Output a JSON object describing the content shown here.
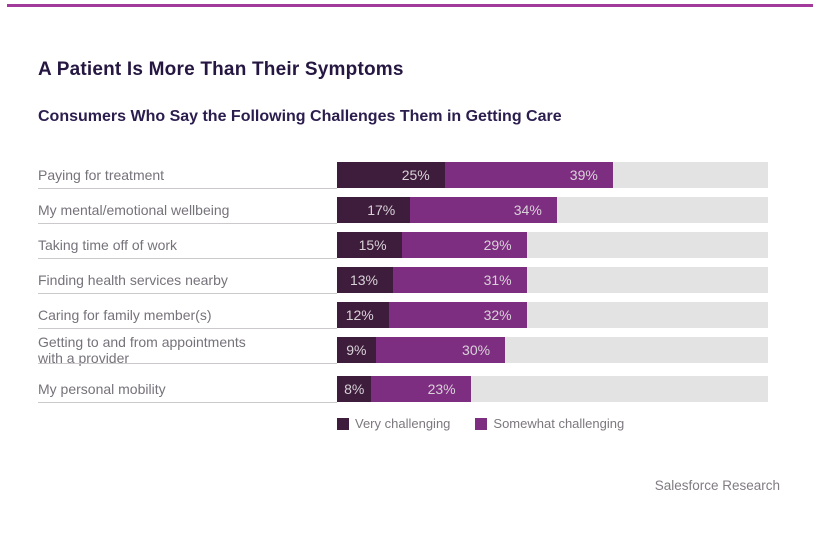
{
  "page": {
    "title": "A Patient Is More Than Their Symptoms",
    "subtitle": "Consumers Who Say the Following Challenges Them in Getting Care",
    "source": "Salesforce Research",
    "accent_color": "#a23a9c"
  },
  "colors": {
    "very_challenging": "#3e1c3b",
    "somewhat_challenging": "#7e2e80",
    "track": "#e4e3e4",
    "value_text": "#d8d2d8",
    "label_text": "#76727a",
    "title_text": "#251741"
  },
  "legend": {
    "items": [
      {
        "label": "Very challenging",
        "color": "#3e1c3b",
        "icon": "very-challenging-swatch-icon"
      },
      {
        "label": "Somewhat challenging",
        "color": "#7e2e80",
        "icon": "somewhat-challenging-swatch-icon"
      }
    ]
  },
  "chart_data": {
    "type": "bar",
    "orientation": "horizontal",
    "stacked": true,
    "title": "Consumers Who Say the Following Challenges Them in Getting Care",
    "xlabel": "",
    "ylabel": "",
    "xlim": [
      0,
      100
    ],
    "grid": false,
    "legend_position": "bottom",
    "value_suffix": "%",
    "categories": [
      "Paying for treatment",
      "My mental/emotional wellbeing",
      "Taking time off of work",
      "Finding health services nearby",
      "Caring for family member(s)",
      "Getting to and from appointments with a provider",
      "My personal mobility"
    ],
    "series": [
      {
        "name": "Very challenging",
        "color": "#3e1c3b",
        "values": [
          25,
          17,
          15,
          13,
          12,
          9,
          8
        ]
      },
      {
        "name": "Somewhat challenging",
        "color": "#7e2e80",
        "values": [
          39,
          34,
          29,
          31,
          32,
          30,
          23
        ]
      }
    ]
  }
}
